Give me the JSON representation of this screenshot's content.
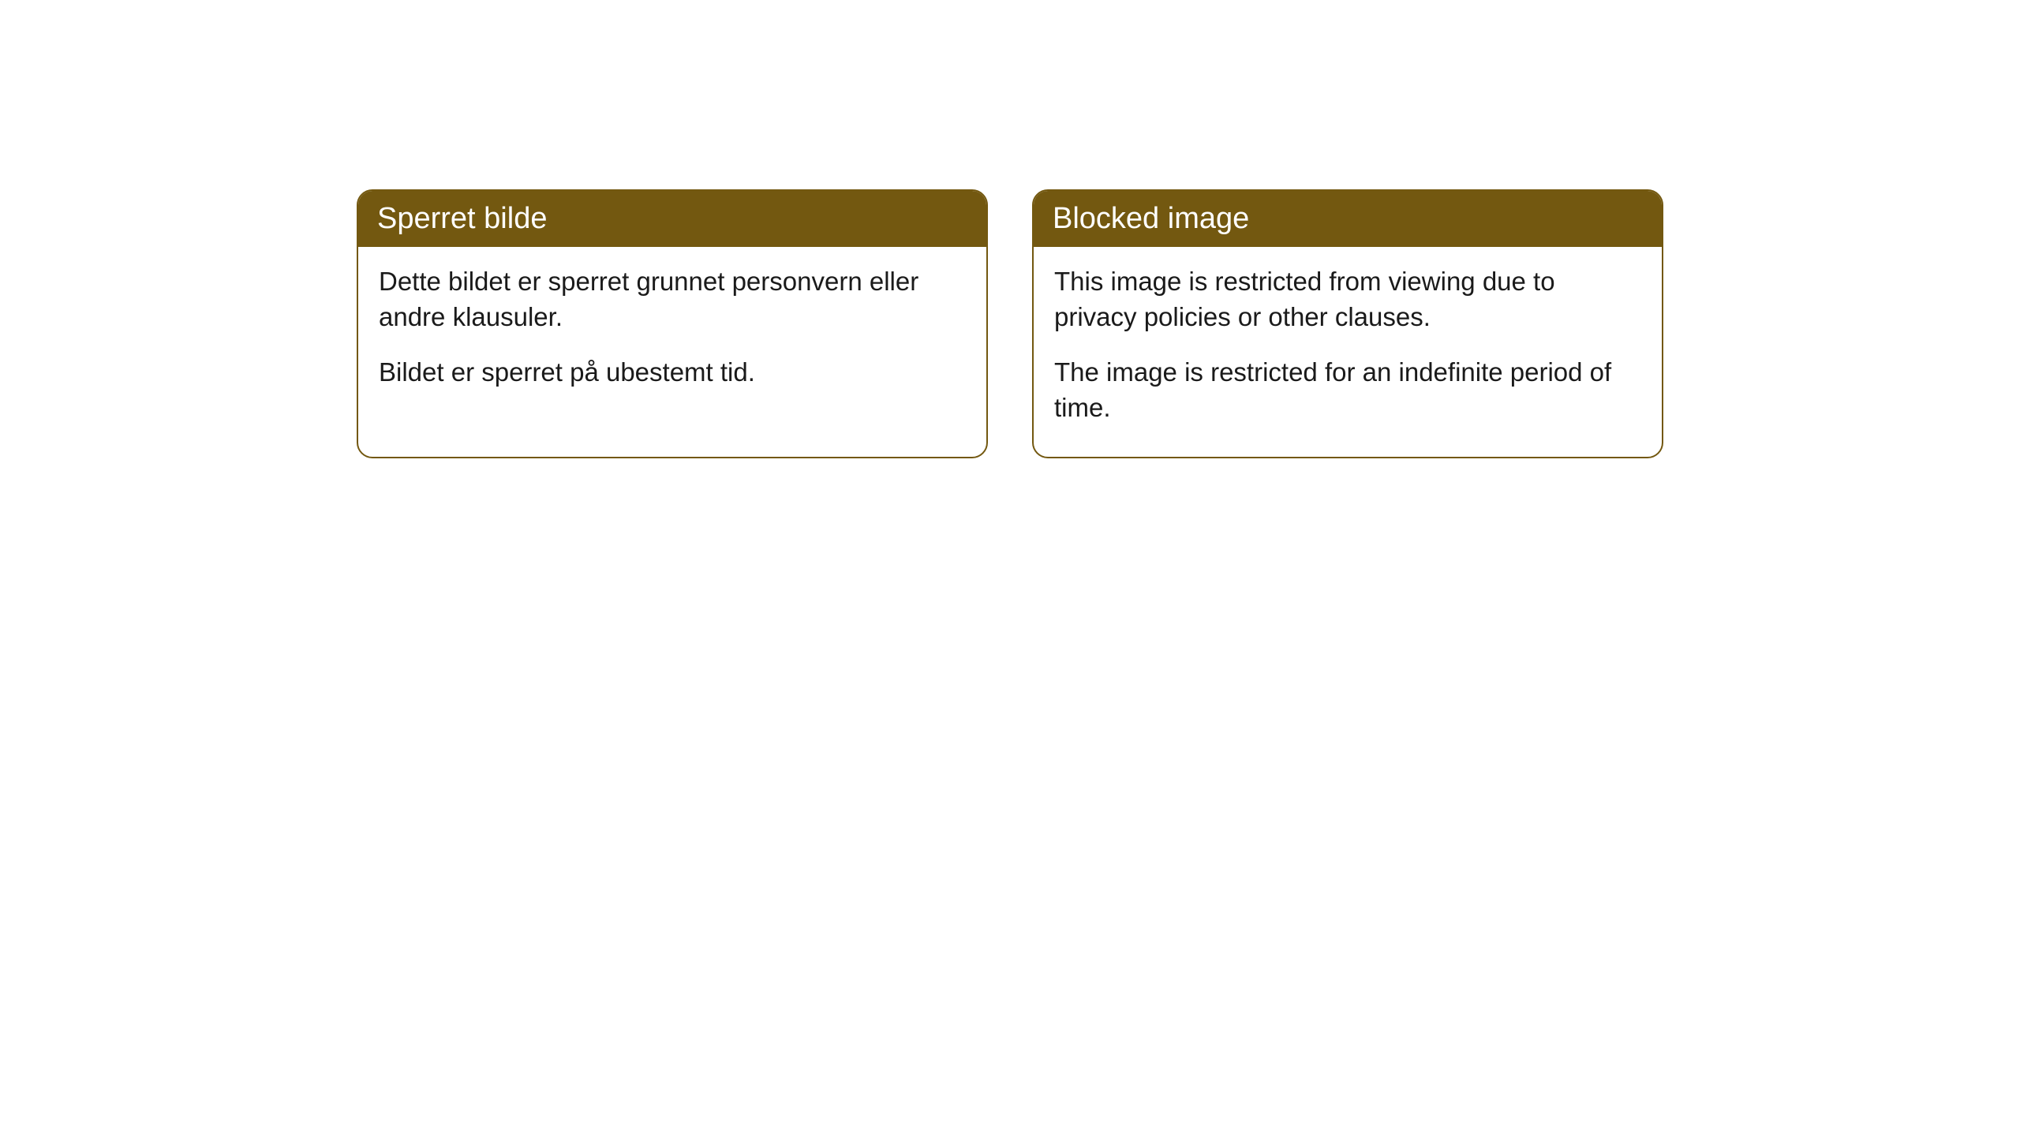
{
  "cards": [
    {
      "title": "Sperret bilde",
      "paragraph1": "Dette bildet er sperret grunnet personvern eller andre klausuler.",
      "paragraph2": "Bildet er sperret på ubestemt tid."
    },
    {
      "title": "Blocked image",
      "paragraph1": "This image is restricted from viewing due to privacy policies or other clauses.",
      "paragraph2": "The image is restricted for an indefinite period of time."
    }
  ],
  "colors": {
    "header_bg": "#735810",
    "header_text": "#ffffff",
    "body_bg": "#ffffff",
    "body_text": "#1a1a1a",
    "border": "#735810"
  }
}
